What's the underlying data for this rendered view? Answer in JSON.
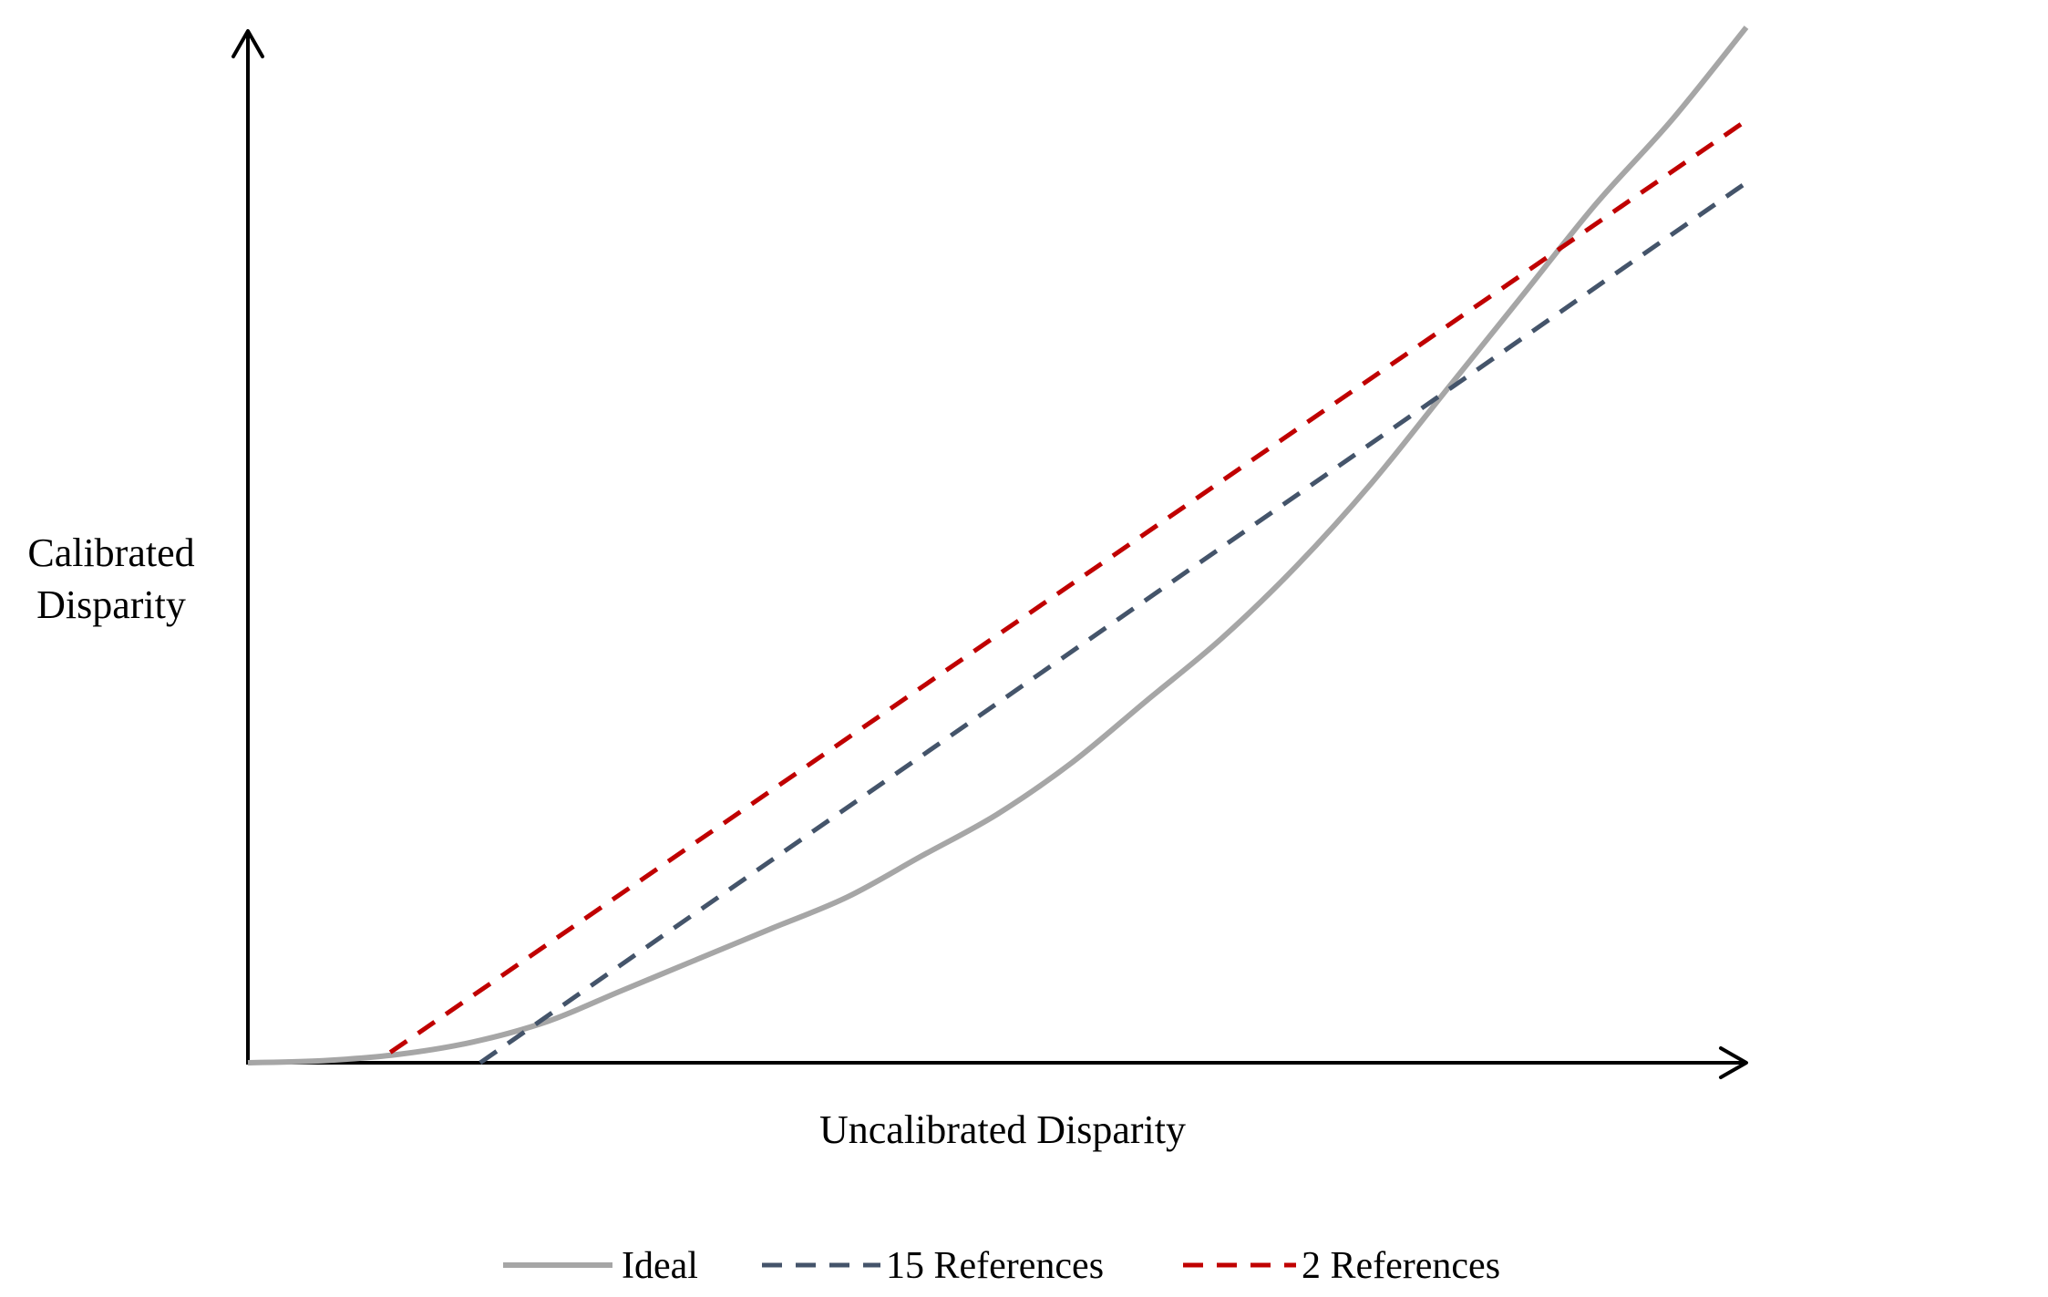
{
  "chart_data": {
    "type": "line",
    "title": "",
    "xlabel": "Uncalibrated Disparity",
    "ylabel_lines": [
      "Calibrated",
      "Disparity"
    ],
    "ticks_shown": false,
    "grid": false,
    "legend_placement": "bottom-center",
    "xlim": [
      0,
      1
    ],
    "ylim": [
      0,
      1
    ],
    "series": [
      {
        "name": "Ideal",
        "style": "solid",
        "color": "#a6a6a6",
        "x": [
          0,
          0.05,
          0.1,
          0.15,
          0.2,
          0.25,
          0.3,
          0.35,
          0.4,
          0.45,
          0.5,
          0.55,
          0.6,
          0.65,
          0.7,
          0.75,
          0.8,
          0.85,
          0.9,
          0.95,
          1.0
        ],
        "y": [
          0,
          0.002,
          0.008,
          0.02,
          0.04,
          0.07,
          0.1,
          0.13,
          0.16,
          0.2,
          0.24,
          0.29,
          0.35,
          0.41,
          0.48,
          0.56,
          0.65,
          0.74,
          0.83,
          0.91,
          1.0
        ]
      },
      {
        "name": "15 References",
        "style": "dashed",
        "color": "#44546a",
        "x": [
          0.155,
          1.0
        ],
        "y": [
          0,
          0.85
        ]
      },
      {
        "name": "2 References",
        "style": "dashed",
        "color": "#c00000",
        "x": [
          0.095,
          1.0
        ],
        "y": [
          0.01,
          0.91
        ]
      }
    ]
  }
}
